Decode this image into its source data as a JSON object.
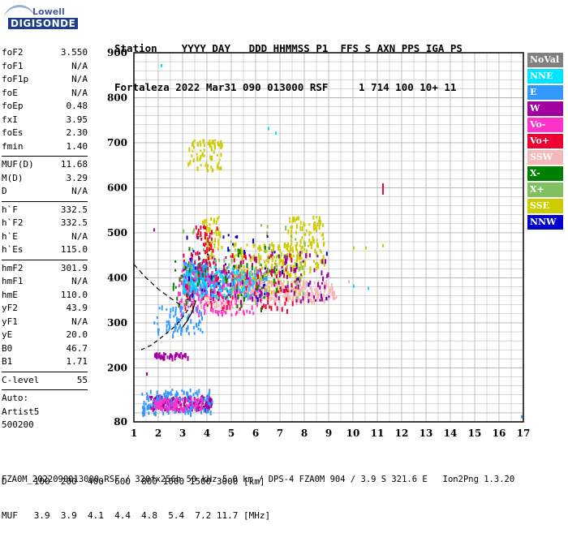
{
  "logo": {
    "top": "Lowell",
    "bottom": "DIGISONDE"
  },
  "header": {
    "line1": "Station    YYYY DAY   DDD HHMMSS P1  FFS S AXN PPS IGA PS",
    "line2": "Fortaleza 2022 Mar31 090 013000 RSF     1 714 100 10+ 11"
  },
  "params": [
    {
      "k": "foF2",
      "v": "3.550"
    },
    {
      "k": "foF1",
      "v": "N/A"
    },
    {
      "k": "foF1p",
      "v": "N/A"
    },
    {
      "k": "foE",
      "v": "N/A"
    },
    {
      "k": "foEp",
      "v": "0.48"
    },
    {
      "k": "fxI",
      "v": "3.95"
    },
    {
      "k": "foEs",
      "v": "2.30"
    },
    {
      "k": "fmin",
      "v": "1.40"
    },
    {
      "sep": true
    },
    {
      "k": "MUF(D)",
      "v": "11.68"
    },
    {
      "k": "M(D)",
      "v": "3.29"
    },
    {
      "k": "D",
      "v": "N/A"
    },
    {
      "sep": true
    },
    {
      "k": "h`F",
      "v": "332.5"
    },
    {
      "k": "h`F2",
      "v": "332.5"
    },
    {
      "k": "h`E",
      "v": "N/A"
    },
    {
      "k": "h`Es",
      "v": "115.0"
    },
    {
      "sep": true
    },
    {
      "k": "hmF2",
      "v": "301.9"
    },
    {
      "k": "hmF1",
      "v": "N/A"
    },
    {
      "k": "hmE",
      "v": "110.0"
    },
    {
      "k": "yF2",
      "v": "43.9"
    },
    {
      "k": "yF1",
      "v": "N/A"
    },
    {
      "k": "yE",
      "v": "20.0"
    },
    {
      "k": "B0",
      "v": "46.7"
    },
    {
      "k": "B1",
      "v": "1.71"
    },
    {
      "sep": true
    },
    {
      "k": "C-level",
      "v": "55"
    },
    {
      "sep": true
    },
    {
      "line": "Auto:"
    },
    {
      "line": "Artist5"
    },
    {
      "line": "500200"
    }
  ],
  "legend": [
    {
      "label": "NoVal",
      "color": "#808080"
    },
    {
      "label": "NNE",
      "color": "#00e5ff"
    },
    {
      "label": "E",
      "color": "#3399ff"
    },
    {
      "label": "W",
      "color": "#a000a0"
    },
    {
      "label": "Vo-",
      "color": "#ff33cc"
    },
    {
      "label": "Vo+",
      "color": "#ee0033"
    },
    {
      "label": "SSW",
      "color": "#f4b8b8"
    },
    {
      "label": "X-",
      "color": "#008000"
    },
    {
      "label": "X+",
      "color": "#80c060"
    },
    {
      "label": "SSE",
      "color": "#cccc00"
    },
    {
      "label": "NNW",
      "color": "#0000cc"
    }
  ],
  "footer": {
    "line1": "D     100  200  400  600  800 1000 1500 3000 [km]",
    "line2": "MUF   3.9  3.9  4.1  4.4  4.8  5.4  7.2 11.7 [MHz]",
    "note": "FZA0M_2022090013000.RSF / 320fx256h 50 kHz 5.0 km / DPS-4 FZA0M 904 / 3.9 S 321.6 E   Ion2Png 1.3.20"
  },
  "chart_data": {
    "type": "scatter",
    "xlim": [
      1,
      17
    ],
    "ylim": [
      80,
      900
    ],
    "xticks": [
      1,
      2,
      3,
      4,
      5,
      6,
      7,
      8,
      9,
      10,
      11,
      12,
      13,
      14,
      15,
      16,
      17
    ],
    "yticks": [
      80,
      200,
      300,
      400,
      500,
      600,
      700,
      800,
      900
    ],
    "grid": true,
    "clusters": [
      {
        "cls": "E",
        "x": [
          3.0,
          4.0
        ],
        "y": [
          370,
          440
        ],
        "n": 260
      },
      {
        "cls": "E",
        "x": [
          4.0,
          6.5
        ],
        "y": [
          360,
          420
        ],
        "n": 220
      },
      {
        "cls": "SSE",
        "x": [
          5.0,
          8.0
        ],
        "y": [
          370,
          480
        ],
        "n": 260
      },
      {
        "cls": "SSE",
        "x": [
          7.3,
          8.8
        ],
        "y": [
          420,
          540
        ],
        "n": 110
      },
      {
        "cls": "SSE",
        "x": [
          3.2,
          4.6
        ],
        "y": [
          640,
          710
        ],
        "n": 70
      },
      {
        "cls": "SSW",
        "x": [
          5.5,
          9.3
        ],
        "y": [
          350,
          395
        ],
        "n": 230
      },
      {
        "cls": "SSW",
        "x": [
          3.6,
          5.5
        ],
        "y": [
          330,
          365
        ],
        "n": 60
      },
      {
        "cls": "W",
        "x": [
          3.0,
          9.0
        ],
        "y": [
          350,
          460
        ],
        "n": 150
      },
      {
        "cls": "Vo-",
        "x": [
          2.8,
          6.2
        ],
        "y": [
          320,
          420
        ],
        "n": 150
      },
      {
        "cls": "Vo+",
        "x": [
          3.0,
          7.5
        ],
        "y": [
          330,
          460
        ],
        "n": 110
      },
      {
        "cls": "NNE",
        "x": [
          3.0,
          6.0
        ],
        "y": [
          360,
          430
        ],
        "n": 90
      },
      {
        "cls": "X-",
        "x": [
          2.5,
          7.0
        ],
        "y": [
          330,
          480
        ],
        "n": 60
      },
      {
        "cls": "X+",
        "x": [
          3.0,
          8.0
        ],
        "y": [
          350,
          520
        ],
        "n": 60
      },
      {
        "cls": "NNW",
        "x": [
          3.0,
          9.0
        ],
        "y": [
          350,
          500
        ],
        "n": 35
      },
      {
        "cls": "E",
        "x": [
          1.8,
          3.8
        ],
        "y": [
          275,
          340
        ],
        "n": 70
      },
      {
        "cls": "W",
        "x": [
          1.8,
          3.2
        ],
        "y": [
          225,
          235
        ],
        "n": 40
      },
      {
        "cls": "W",
        "x": [
          1.6,
          4.2
        ],
        "y": [
          110,
          140
        ],
        "n": 200
      },
      {
        "cls": "E",
        "x": [
          1.3,
          4.2
        ],
        "y": [
          100,
          155
        ],
        "n": 140
      },
      {
        "cls": "Vo-",
        "x": [
          1.8,
          3.8
        ],
        "y": [
          110,
          135
        ],
        "n": 80
      },
      {
        "cls": "SSE",
        "x": [
          3.8,
          4.6
        ],
        "y": [
          450,
          540
        ],
        "n": 50
      },
      {
        "cls": "Vo+",
        "x": [
          3.5,
          4.4
        ],
        "y": [
          430,
          520
        ],
        "n": 40
      }
    ],
    "points": [
      {
        "cls": "NNE",
        "x": 2.1,
        "y": 875
      },
      {
        "cls": "NNE",
        "x": 6.5,
        "y": 735
      },
      {
        "cls": "NNE",
        "x": 6.8,
        "y": 725
      },
      {
        "cls": "NNE",
        "x": 10.0,
        "y": 385
      },
      {
        "cls": "NNE",
        "x": 10.6,
        "y": 380
      },
      {
        "cls": "Vo+",
        "x": 11.2,
        "y": 610
      },
      {
        "cls": "SSE",
        "x": 10.0,
        "y": 470
      },
      {
        "cls": "SSE",
        "x": 10.5,
        "y": 470
      },
      {
        "cls": "SSE",
        "x": 11.2,
        "y": 475
      },
      {
        "cls": "W",
        "x": 1.8,
        "y": 510
      },
      {
        "cls": "E",
        "x": 16.9,
        "y": 95
      },
      {
        "cls": "W",
        "x": 1.5,
        "y": 190
      },
      {
        "cls": "SSW",
        "x": 9.8,
        "y": 395
      }
    ],
    "trace": {
      "x": [
        1.3,
        1.7,
        2.0,
        2.3,
        2.6,
        2.9,
        3.1,
        3.3,
        3.5
      ],
      "y": [
        240,
        250,
        262,
        275,
        288,
        305,
        320,
        335,
        350
      ]
    },
    "trace_upper": {
      "x": [
        1.0,
        1.5,
        2.0,
        2.5,
        2.9
      ],
      "y": [
        430,
        400,
        375,
        355,
        340
      ]
    },
    "trace_lower": {
      "x": [
        3.0,
        3.2,
        3.4,
        3.55
      ],
      "y": [
        290,
        305,
        325,
        350
      ]
    }
  }
}
